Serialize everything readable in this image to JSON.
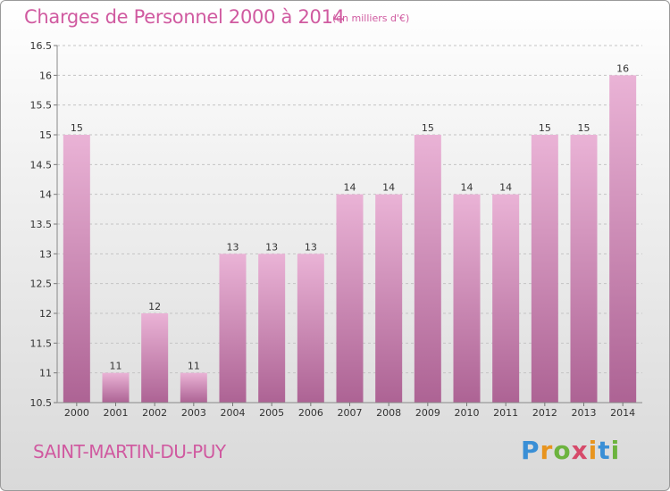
{
  "header": {
    "title": "Charges de Personnel 2000 à 2014",
    "subtitle": "(en milliers d'€)"
  },
  "footer": {
    "commune": "SAINT-MARTIN-DU-PUY",
    "logo": "Proxiti"
  },
  "colors": {
    "title": "#d05aa0",
    "bar_light": "#e8aed3",
    "bar_dark": "#b06898",
    "grid": "#bdbdbd"
  },
  "chart_data": {
    "type": "bar",
    "title": "Charges de Personnel 2000 à 2014",
    "subtitle": "(en milliers d'€)",
    "xlabel": "",
    "ylabel": "",
    "categories": [
      "2000",
      "2001",
      "2002",
      "2003",
      "2004",
      "2005",
      "2006",
      "2007",
      "2008",
      "2009",
      "2010",
      "2011",
      "2012",
      "2013",
      "2014"
    ],
    "values": [
      15,
      11,
      12,
      11,
      13,
      13,
      13,
      14,
      14,
      15,
      14,
      14,
      15,
      15,
      16
    ],
    "data_labels": [
      "15",
      "11",
      "12",
      "11",
      "13",
      "13",
      "13",
      "14",
      "14",
      "15",
      "14",
      "14",
      "15",
      "15",
      "16"
    ],
    "ylim": [
      10.5,
      16.5
    ],
    "yticks": [
      10.5,
      11,
      11.5,
      12,
      12.5,
      13,
      13.5,
      14,
      14.5,
      15,
      15.5,
      16,
      16.5
    ],
    "ytick_labels": [
      "10.5",
      "11",
      "11.5",
      "12",
      "12.5",
      "13",
      "13.5",
      "14",
      "14.5",
      "15",
      "15.5",
      "16",
      "16.5"
    ],
    "grid": "horizontal dashed",
    "legend": "none"
  }
}
